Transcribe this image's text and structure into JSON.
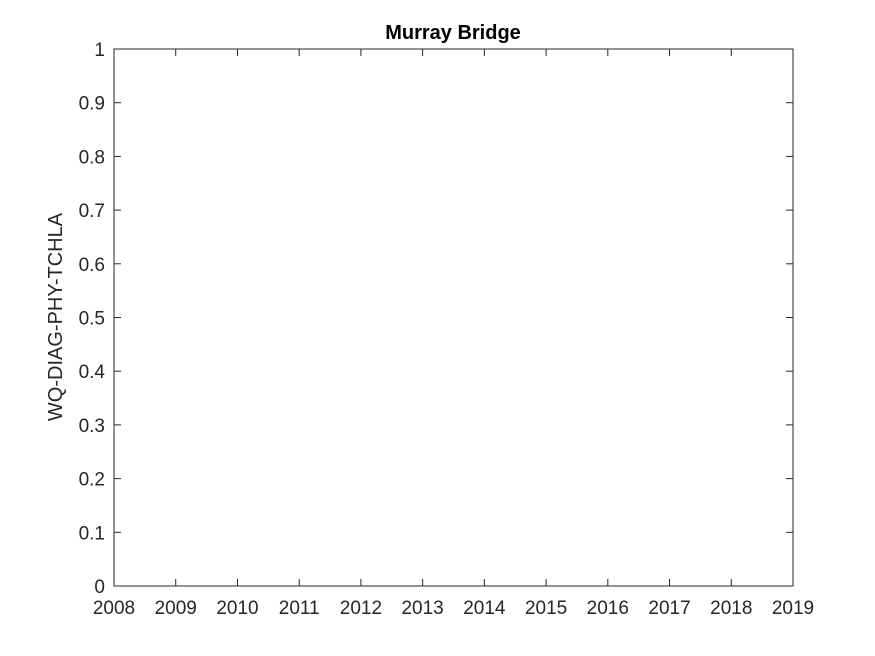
{
  "chart_data": {
    "type": "line",
    "title": "Murray Bridge",
    "xlabel": "",
    "ylabel": "WQ-DIAG-PHY-TCHLA",
    "xlim": [
      2008,
      2019
    ],
    "ylim": [
      0,
      1
    ],
    "x_ticks": [
      "2008",
      "2009",
      "2010",
      "2011",
      "2012",
      "2013",
      "2014",
      "2015",
      "2016",
      "2017",
      "2018",
      "2019"
    ],
    "y_ticks": [
      "0",
      "0.1",
      "0.2",
      "0.3",
      "0.4",
      "0.5",
      "0.6",
      "0.7",
      "0.8",
      "0.9",
      "1"
    ],
    "grid": false,
    "series": []
  }
}
